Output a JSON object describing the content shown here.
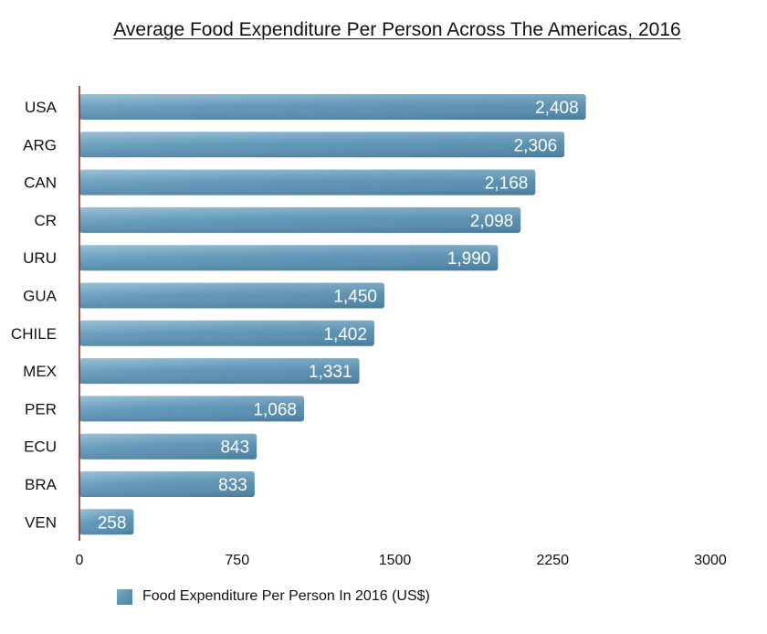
{
  "chart_data": {
    "type": "bar",
    "orientation": "horizontal",
    "title": "Average Food Expenditure Per Person Across The Americas, 2016",
    "categories": [
      "USA",
      "ARG",
      "CAN",
      "CR",
      "URU",
      "GUA",
      "CHILE",
      "MEX",
      "PER",
      "ECU",
      "BRA",
      "VEN"
    ],
    "series": [
      {
        "name": "Food Expenditure Per Person In 2016 (US$)",
        "values": [
          2408,
          2306,
          2168,
          2098,
          1990,
          1450,
          1402,
          1331,
          1068,
          843,
          833,
          258
        ],
        "value_labels": [
          "2,408",
          "2,306",
          "2,168",
          "2,098",
          "1,990",
          "1,450",
          "1,402",
          "1,331",
          "1,068",
          "843",
          "833",
          "258"
        ]
      }
    ],
    "xlim": [
      0,
      3000
    ],
    "x_ticks": [
      "0",
      "750",
      "1500",
      "2250",
      "3000"
    ],
    "grid": false,
    "legend_position": "bottom-left",
    "colors": {
      "bar": "#5f95b5",
      "bar_light": "#7fb1cc",
      "bar_dark": "#4e86a8",
      "axis_line": "#8b1a1a",
      "label_text": "#ffffff"
    }
  }
}
